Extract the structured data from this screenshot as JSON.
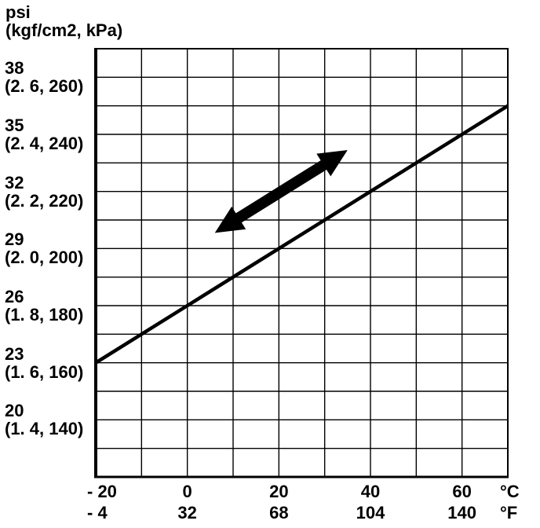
{
  "colors": {
    "foreground": "#000000",
    "background": "#ffffff"
  },
  "chart_data": {
    "type": "line",
    "grid": true,
    "legend": false,
    "y_axis": {
      "title_line1": "psi",
      "title_line2": "(kgf/cm2, kPa)",
      "range_kpa": [
        120,
        270
      ],
      "grid_step_kpa": 10,
      "ticks": [
        {
          "psi": "38",
          "alt": "(2. 6, 260)",
          "kpa": 260
        },
        {
          "psi": "35",
          "alt": "(2. 4, 240)",
          "kpa": 240
        },
        {
          "psi": "32",
          "alt": "(2. 2, 220)",
          "kpa": 220
        },
        {
          "psi": "29",
          "alt": "(2. 0, 200)",
          "kpa": 200
        },
        {
          "psi": "26",
          "alt": "(1. 8, 180)",
          "kpa": 180
        },
        {
          "psi": "23",
          "alt": "(1. 6, 160)",
          "kpa": 160
        },
        {
          "psi": "20",
          "alt": "(1. 4, 140)",
          "kpa": 140
        }
      ]
    },
    "x_axis": {
      "unit_primary": "°C",
      "unit_secondary": "°F",
      "range_c": [
        -20,
        70
      ],
      "grid_step_c": 10,
      "ticks": [
        {
          "celsius": "- 20",
          "fahrenheit": "- 4",
          "c": -20
        },
        {
          "celsius": "0",
          "fahrenheit": "32",
          "c": 0
        },
        {
          "celsius": "20",
          "fahrenheit": "68",
          "c": 20
        },
        {
          "celsius": "40",
          "fahrenheit": "104",
          "c": 40
        },
        {
          "celsius": "60",
          "fahrenheit": "140",
          "c": 60
        }
      ]
    },
    "series": [
      {
        "name": "pressure-vs-temperature",
        "points_c_kpa": [
          [
            -20,
            160
          ],
          [
            0,
            180
          ],
          [
            20,
            200
          ],
          [
            40,
            220
          ],
          [
            60,
            240
          ],
          [
            70,
            250
          ]
        ]
      }
    ],
    "annotations": [
      {
        "type": "double-headed-arrow",
        "from_c_kpa": [
          6,
          205.5
        ],
        "to_c_kpa": [
          35,
          234.5
        ]
      }
    ]
  }
}
